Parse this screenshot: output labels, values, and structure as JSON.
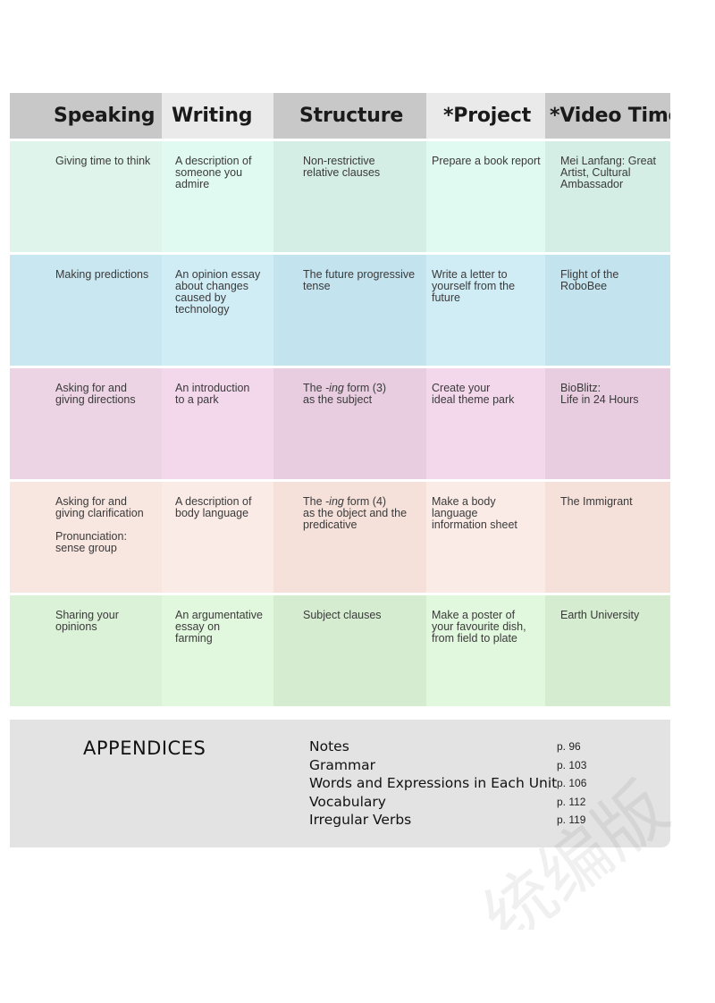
{
  "headers": [
    "Speaking",
    "Writing",
    "Structure",
    "*Project",
    "*Video Time"
  ],
  "rows": [
    {
      "bg": [
        "#dff5ec",
        "#e0faf1",
        "#d4ede5",
        "#e0faf1",
        "#d4ede5"
      ],
      "cells": [
        [
          "Giving time to think"
        ],
        [
          "A description of",
          "someone you",
          "admire"
        ],
        [
          "Non-restrictive",
          "relative clauses"
        ],
        [
          "Prepare a book report"
        ],
        [
          "Mei Lanfang: Great",
          "Artist, Cultural",
          "Ambassador"
        ]
      ]
    },
    {
      "bg": [
        "#c9e7f1",
        "#d0edf6",
        "#c3e3ef",
        "#d0edf6",
        "#c3e3ef"
      ],
      "cells": [
        [
          "Making predictions"
        ],
        [
          "An opinion essay",
          "about changes",
          "caused by",
          "technology"
        ],
        [
          "The future progressive",
          "tense"
        ],
        [
          "Write a letter to",
          "yourself from the",
          "future"
        ],
        [
          "Flight of the",
          "RoboBee"
        ]
      ]
    },
    {
      "bg": [
        "#ecd4e4",
        "#f3d8ec",
        "#e8cde0",
        "#f3d8ec",
        "#e8cde0"
      ],
      "cells": [
        [
          "Asking for and",
          "giving directions"
        ],
        [
          "An introduction",
          "to a park"
        ],
        [
          "The -ing form (3)",
          "as the subject"
        ],
        [
          "Create your",
          "ideal theme park"
        ],
        [
          "BioBlitz:",
          "Life in 24 Hours"
        ]
      ]
    },
    {
      "bg": [
        "#f8e6e0",
        "#fbebe6",
        "#f5e1da",
        "#fbebe6",
        "#f5e1da"
      ],
      "cells": [
        [
          "Asking for and",
          "giving clarification",
          "",
          "Pronunciation:",
          "sense group"
        ],
        [
          "A description of",
          "body language"
        ],
        [
          "The -ing form (4)",
          "as the object and the",
          "predicative"
        ],
        [
          "Make a body",
          "language",
          "information sheet"
        ],
        [
          "The Immigrant"
        ]
      ]
    },
    {
      "bg": [
        "#dcf2d8",
        "#e2f8de",
        "#d5ecd1",
        "#e2f8de",
        "#d5ecd1"
      ],
      "cells": [
        [
          "Sharing your",
          "opinions"
        ],
        [
          "An argumentative",
          "essay on",
          "farming"
        ],
        [
          "Subject clauses"
        ],
        [
          "Make a poster of",
          "your favourite dish,",
          "from field to plate"
        ],
        [
          "Earth University"
        ]
      ]
    }
  ],
  "appendices": {
    "title": "APPENDICES",
    "items": [
      {
        "name": "Notes",
        "page": "p. 96"
      },
      {
        "name": "Grammar",
        "page": "p. 103"
      },
      {
        "name": "Words and Expressions in Each Unit",
        "page": "p. 106"
      },
      {
        "name": "Vocabulary",
        "page": "p. 112"
      },
      {
        "name": "Irregular Verbs",
        "page": "p. 119"
      }
    ]
  },
  "watermark": "统编版"
}
